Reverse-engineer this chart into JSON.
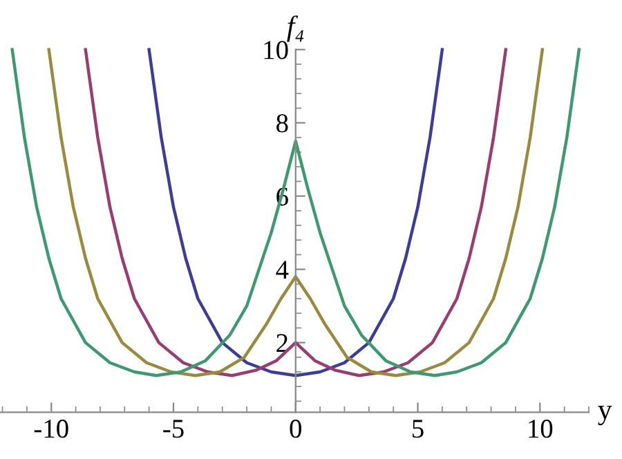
{
  "chart_data": {
    "type": "line",
    "xlabel": "y",
    "ylabel": "f₄",
    "xlim": [
      -12.1,
      12
    ],
    "ylim": [
      0.1,
      10
    ],
    "xticks": [
      -10,
      -5,
      0,
      5,
      10
    ],
    "yticks": [
      2,
      4,
      6,
      8,
      10
    ],
    "grid": false,
    "legend": false,
    "marker": "none",
    "line_style": "solid",
    "series": [
      {
        "color": "#3d3d99",
        "x": [
          -6,
          -5.5,
          -5,
          -4.5,
          -4,
          -3,
          -2,
          -1,
          0,
          1,
          2,
          3,
          4,
          4.5,
          5,
          5.5,
          6
        ],
        "values": [
          10,
          7.6,
          5.7,
          4.3,
          3.2,
          2.0,
          1.45,
          1.2,
          1.1,
          1.2,
          1.45,
          2.0,
          3.2,
          4.3,
          5.7,
          7.6,
          10
        ]
      },
      {
        "color": "#993d71",
        "x": [
          -8.6,
          -8.1,
          -7.6,
          -7.1,
          -6.6,
          -5.6,
          -4.6,
          -3.6,
          -2.6,
          -1.6,
          -0.8,
          0,
          0.8,
          1.6,
          2.6,
          3.6,
          4.6,
          5.6,
          6.6,
          7.1,
          7.6,
          8.1,
          8.6
        ],
        "values": [
          10,
          7.6,
          5.7,
          4.3,
          3.2,
          2.0,
          1.45,
          1.2,
          1.1,
          1.25,
          1.5,
          2.0,
          1.5,
          1.25,
          1.1,
          1.2,
          1.45,
          2.0,
          3.2,
          4.3,
          5.7,
          7.6,
          10
        ]
      },
      {
        "color": "#998a3d",
        "x": [
          -10.1,
          -9.6,
          -9.1,
          -8.6,
          -8.1,
          -7.1,
          -6.1,
          -5.1,
          -4.1,
          -3.1,
          -2.1,
          -1.2,
          -0.6,
          0,
          0.6,
          1.2,
          2.1,
          3.1,
          4.1,
          5.1,
          6.1,
          7.1,
          8.1,
          8.6,
          9.1,
          9.6,
          10.1
        ],
        "values": [
          10,
          7.6,
          5.7,
          4.3,
          3.2,
          2.0,
          1.45,
          1.2,
          1.1,
          1.2,
          1.6,
          2.5,
          3.2,
          3.8,
          3.2,
          2.5,
          1.6,
          1.2,
          1.1,
          1.2,
          1.45,
          2.0,
          3.2,
          4.3,
          5.7,
          7.6,
          10
        ]
      },
      {
        "color": "#3d9970",
        "x": [
          -11.6,
          -11.1,
          -10.6,
          -10.1,
          -9.6,
          -8.6,
          -7.6,
          -6.6,
          -5.7,
          -4.7,
          -3.7,
          -2.7,
          -2,
          -1,
          -0.5,
          0,
          0.5,
          1,
          2,
          2.7,
          3.7,
          4.7,
          5.7,
          6.6,
          7.6,
          8.6,
          9.6,
          10.1,
          10.6,
          11.1,
          11.6
        ],
        "values": [
          10,
          7.6,
          5.7,
          4.3,
          3.2,
          2.0,
          1.45,
          1.2,
          1.1,
          1.2,
          1.5,
          2.2,
          3.0,
          5.0,
          6.2,
          7.5,
          6.2,
          5.0,
          3.0,
          2.2,
          1.5,
          1.2,
          1.1,
          1.2,
          1.45,
          2.0,
          3.2,
          4.3,
          5.7,
          7.6,
          10
        ]
      }
    ]
  }
}
